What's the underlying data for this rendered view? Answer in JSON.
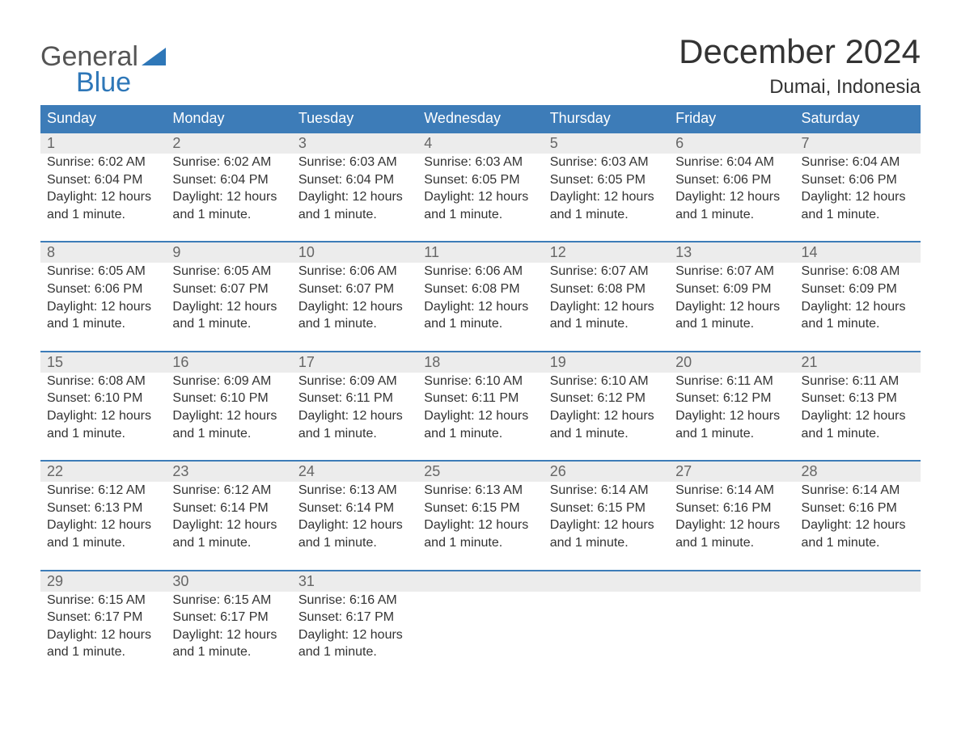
{
  "logo": {
    "text1": "General",
    "text2": "Blue",
    "flag_color": "#2e77b8"
  },
  "title": "December 2024",
  "subtitle": "Dumai, Indonesia",
  "colors": {
    "header_bg": "#3d7cb8",
    "header_text": "#ffffff",
    "daynum_bg": "#ececec",
    "daynum_border": "#3d7cb8",
    "body_text": "#333333",
    "daynum_text": "#666666",
    "page_bg": "#ffffff"
  },
  "weekdays": [
    "Sunday",
    "Monday",
    "Tuesday",
    "Wednesday",
    "Thursday",
    "Friday",
    "Saturday"
  ],
  "weeks": [
    [
      {
        "day": "1",
        "sunrise": "Sunrise: 6:02 AM",
        "sunset": "Sunset: 6:04 PM",
        "dl1": "Daylight: 12 hours",
        "dl2": "and 1 minute."
      },
      {
        "day": "2",
        "sunrise": "Sunrise: 6:02 AM",
        "sunset": "Sunset: 6:04 PM",
        "dl1": "Daylight: 12 hours",
        "dl2": "and 1 minute."
      },
      {
        "day": "3",
        "sunrise": "Sunrise: 6:03 AM",
        "sunset": "Sunset: 6:04 PM",
        "dl1": "Daylight: 12 hours",
        "dl2": "and 1 minute."
      },
      {
        "day": "4",
        "sunrise": "Sunrise: 6:03 AM",
        "sunset": "Sunset: 6:05 PM",
        "dl1": "Daylight: 12 hours",
        "dl2": "and 1 minute."
      },
      {
        "day": "5",
        "sunrise": "Sunrise: 6:03 AM",
        "sunset": "Sunset: 6:05 PM",
        "dl1": "Daylight: 12 hours",
        "dl2": "and 1 minute."
      },
      {
        "day": "6",
        "sunrise": "Sunrise: 6:04 AM",
        "sunset": "Sunset: 6:06 PM",
        "dl1": "Daylight: 12 hours",
        "dl2": "and 1 minute."
      },
      {
        "day": "7",
        "sunrise": "Sunrise: 6:04 AM",
        "sunset": "Sunset: 6:06 PM",
        "dl1": "Daylight: 12 hours",
        "dl2": "and 1 minute."
      }
    ],
    [
      {
        "day": "8",
        "sunrise": "Sunrise: 6:05 AM",
        "sunset": "Sunset: 6:06 PM",
        "dl1": "Daylight: 12 hours",
        "dl2": "and 1 minute."
      },
      {
        "day": "9",
        "sunrise": "Sunrise: 6:05 AM",
        "sunset": "Sunset: 6:07 PM",
        "dl1": "Daylight: 12 hours",
        "dl2": "and 1 minute."
      },
      {
        "day": "10",
        "sunrise": "Sunrise: 6:06 AM",
        "sunset": "Sunset: 6:07 PM",
        "dl1": "Daylight: 12 hours",
        "dl2": "and 1 minute."
      },
      {
        "day": "11",
        "sunrise": "Sunrise: 6:06 AM",
        "sunset": "Sunset: 6:08 PM",
        "dl1": "Daylight: 12 hours",
        "dl2": "and 1 minute."
      },
      {
        "day": "12",
        "sunrise": "Sunrise: 6:07 AM",
        "sunset": "Sunset: 6:08 PM",
        "dl1": "Daylight: 12 hours",
        "dl2": "and 1 minute."
      },
      {
        "day": "13",
        "sunrise": "Sunrise: 6:07 AM",
        "sunset": "Sunset: 6:09 PM",
        "dl1": "Daylight: 12 hours",
        "dl2": "and 1 minute."
      },
      {
        "day": "14",
        "sunrise": "Sunrise: 6:08 AM",
        "sunset": "Sunset: 6:09 PM",
        "dl1": "Daylight: 12 hours",
        "dl2": "and 1 minute."
      }
    ],
    [
      {
        "day": "15",
        "sunrise": "Sunrise: 6:08 AM",
        "sunset": "Sunset: 6:10 PM",
        "dl1": "Daylight: 12 hours",
        "dl2": "and 1 minute."
      },
      {
        "day": "16",
        "sunrise": "Sunrise: 6:09 AM",
        "sunset": "Sunset: 6:10 PM",
        "dl1": "Daylight: 12 hours",
        "dl2": "and 1 minute."
      },
      {
        "day": "17",
        "sunrise": "Sunrise: 6:09 AM",
        "sunset": "Sunset: 6:11 PM",
        "dl1": "Daylight: 12 hours",
        "dl2": "and 1 minute."
      },
      {
        "day": "18",
        "sunrise": "Sunrise: 6:10 AM",
        "sunset": "Sunset: 6:11 PM",
        "dl1": "Daylight: 12 hours",
        "dl2": "and 1 minute."
      },
      {
        "day": "19",
        "sunrise": "Sunrise: 6:10 AM",
        "sunset": "Sunset: 6:12 PM",
        "dl1": "Daylight: 12 hours",
        "dl2": "and 1 minute."
      },
      {
        "day": "20",
        "sunrise": "Sunrise: 6:11 AM",
        "sunset": "Sunset: 6:12 PM",
        "dl1": "Daylight: 12 hours",
        "dl2": "and 1 minute."
      },
      {
        "day": "21",
        "sunrise": "Sunrise: 6:11 AM",
        "sunset": "Sunset: 6:13 PM",
        "dl1": "Daylight: 12 hours",
        "dl2": "and 1 minute."
      }
    ],
    [
      {
        "day": "22",
        "sunrise": "Sunrise: 6:12 AM",
        "sunset": "Sunset: 6:13 PM",
        "dl1": "Daylight: 12 hours",
        "dl2": "and 1 minute."
      },
      {
        "day": "23",
        "sunrise": "Sunrise: 6:12 AM",
        "sunset": "Sunset: 6:14 PM",
        "dl1": "Daylight: 12 hours",
        "dl2": "and 1 minute."
      },
      {
        "day": "24",
        "sunrise": "Sunrise: 6:13 AM",
        "sunset": "Sunset: 6:14 PM",
        "dl1": "Daylight: 12 hours",
        "dl2": "and 1 minute."
      },
      {
        "day": "25",
        "sunrise": "Sunrise: 6:13 AM",
        "sunset": "Sunset: 6:15 PM",
        "dl1": "Daylight: 12 hours",
        "dl2": "and 1 minute."
      },
      {
        "day": "26",
        "sunrise": "Sunrise: 6:14 AM",
        "sunset": "Sunset: 6:15 PM",
        "dl1": "Daylight: 12 hours",
        "dl2": "and 1 minute."
      },
      {
        "day": "27",
        "sunrise": "Sunrise: 6:14 AM",
        "sunset": "Sunset: 6:16 PM",
        "dl1": "Daylight: 12 hours",
        "dl2": "and 1 minute."
      },
      {
        "day": "28",
        "sunrise": "Sunrise: 6:14 AM",
        "sunset": "Sunset: 6:16 PM",
        "dl1": "Daylight: 12 hours",
        "dl2": "and 1 minute."
      }
    ],
    [
      {
        "day": "29",
        "sunrise": "Sunrise: 6:15 AM",
        "sunset": "Sunset: 6:17 PM",
        "dl1": "Daylight: 12 hours",
        "dl2": "and 1 minute."
      },
      {
        "day": "30",
        "sunrise": "Sunrise: 6:15 AM",
        "sunset": "Sunset: 6:17 PM",
        "dl1": "Daylight: 12 hours",
        "dl2": "and 1 minute."
      },
      {
        "day": "31",
        "sunrise": "Sunrise: 6:16 AM",
        "sunset": "Sunset: 6:17 PM",
        "dl1": "Daylight: 12 hours",
        "dl2": "and 1 minute."
      },
      null,
      null,
      null,
      null
    ]
  ]
}
